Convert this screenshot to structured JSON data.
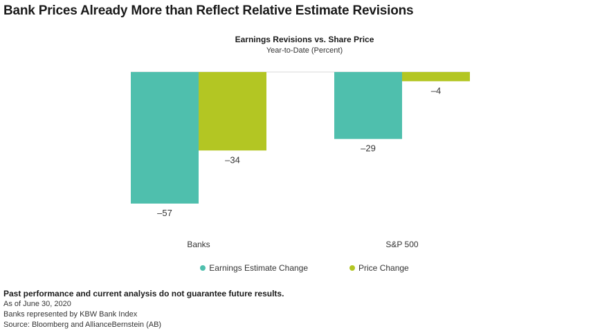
{
  "headline": "Bank Prices Already More than Reflect Relative Estimate Revisions",
  "chart_data": {
    "type": "bar",
    "title": "Earnings Revisions vs. Share Price",
    "subtitle": "Year-to-Date (Percent)",
    "categories": [
      "Banks",
      "S&P 500"
    ],
    "series": [
      {
        "name": "Earnings Estimate Change",
        "values": [
          -57,
          -29
        ],
        "color": "#4fbfad"
      },
      {
        "name": "Price Change",
        "values": [
          -34,
          -4
        ],
        "color": "#b3c623"
      }
    ],
    "value_labels": [
      [
        "–57",
        "–29"
      ],
      [
        "–34",
        "–4"
      ]
    ],
    "ylim": [
      -57,
      0
    ],
    "grid": false,
    "legend": "bottom"
  },
  "footer": {
    "disclaimer": "Past performance and current analysis do not guarantee future results.",
    "lines": [
      "As of June 30, 2020",
      "Banks represented by KBW Bank Index",
      "Source: Bloomberg and AllianceBernstein (AB)"
    ]
  }
}
